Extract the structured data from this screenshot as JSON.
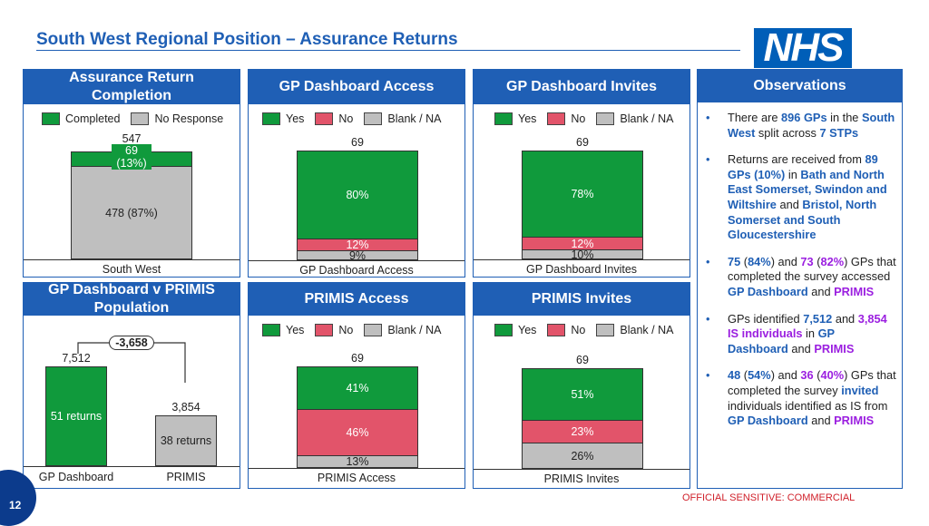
{
  "header": {
    "title": "South West Regional Position – Assurance Returns",
    "logo": "NHS"
  },
  "panels": {
    "completion": {
      "title": "Assurance Return Completion",
      "legend": [
        "Completed",
        "No Response"
      ],
      "total": "547",
      "top_label": "69 (13%)",
      "bottom_label": "478 (87%)",
      "x_label": "South West"
    },
    "gp_access": {
      "title": "GP Dashboard Access",
      "legend": [
        "Yes",
        "No",
        "Blank / NA"
      ],
      "total": "69",
      "green": "80%",
      "red": "12%",
      "grey": "9%",
      "x_label": "GP Dashboard Access"
    },
    "gp_invites": {
      "title": "GP Dashboard Invites",
      "legend": [
        "Yes",
        "No",
        "Blank / NA"
      ],
      "total": "69",
      "green": "78%",
      "red": "12%",
      "grey": "10%",
      "x_label": "GP Dashboard Invites"
    },
    "population": {
      "title": "GP Dashboard v PRIMIS Population",
      "diff": "-3,658",
      "bar1_total": "7,512",
      "bar1_label": "51 returns",
      "bar1_x": "GP Dashboard",
      "bar2_total": "3,854",
      "bar2_label": "38 returns",
      "bar2_x": "PRIMIS"
    },
    "primis_access": {
      "title": "PRIMIS Access",
      "legend": [
        "Yes",
        "No",
        "Blank / NA"
      ],
      "total": "69",
      "green": "41%",
      "red": "46%",
      "grey": "13%",
      "x_label": "PRIMIS Access"
    },
    "primis_invites": {
      "title": "PRIMIS Invites",
      "legend": [
        "Yes",
        "No",
        "Blank / NA"
      ],
      "total": "69",
      "green": "51%",
      "red": "23%",
      "grey": "26%",
      "x_label": "PRIMIS Invites"
    },
    "observations": {
      "title": "Observations"
    }
  },
  "observations": [
    [
      {
        "t": "There are "
      },
      {
        "t": "896 GPs",
        "c": "b"
      },
      {
        "t": " in the "
      },
      {
        "t": "South West",
        "c": "b"
      },
      {
        "t": " split across "
      },
      {
        "t": "7 STPs",
        "c": "b"
      }
    ],
    [
      {
        "t": "Returns are received from "
      },
      {
        "t": "89 GPs (10%)",
        "c": "b"
      },
      {
        "t": " in "
      },
      {
        "t": "Bath and North East Somerset, Swindon and Wiltshire",
        "c": "b"
      },
      {
        "t": " and "
      },
      {
        "t": "Bristol, North Somerset and South Gloucestershire",
        "c": "b"
      }
    ],
    [
      {
        "t": "75",
        "c": "b"
      },
      {
        "t": " ("
      },
      {
        "t": "84%",
        "c": "b"
      },
      {
        "t": ") and "
      },
      {
        "t": "73",
        "c": "p"
      },
      {
        "t": " ("
      },
      {
        "t": "82%",
        "c": "p"
      },
      {
        "t": ") GPs that completed the survey accessed "
      },
      {
        "t": "GP Dashboard",
        "c": "b"
      },
      {
        "t": " and "
      },
      {
        "t": "PRIMIS",
        "c": "p"
      }
    ],
    [
      {
        "t": "GPs identified "
      },
      {
        "t": "7,512",
        "c": "b"
      },
      {
        "t": " and "
      },
      {
        "t": "3,854 IS individuals",
        "c": "p"
      },
      {
        "t": " in "
      },
      {
        "t": "GP Dashboard",
        "c": "b"
      },
      {
        "t": " and "
      },
      {
        "t": "PRIMIS",
        "c": "p"
      }
    ],
    [
      {
        "t": "48",
        "c": "b"
      },
      {
        "t": " ("
      },
      {
        "t": "54%",
        "c": "b"
      },
      {
        "t": ") and "
      },
      {
        "t": "36",
        "c": "p"
      },
      {
        "t": " ("
      },
      {
        "t": "40%",
        "c": "p"
      },
      {
        "t": ") GPs that completed the survey "
      },
      {
        "t": "invited",
        "c": "b"
      },
      {
        "t": " individuals identified as IS from "
      },
      {
        "t": "GP Dashboard",
        "c": "b"
      },
      {
        "t": " and "
      },
      {
        "t": "PRIMIS",
        "c": "p"
      }
    ]
  ],
  "footer": {
    "classification": "OFFICIAL SENSITIVE: COMMERCIAL",
    "page": "12"
  },
  "colors": {
    "nhs_blue": "#1f5fb5",
    "green": "#109a3c",
    "red": "#e2546a",
    "grey": "#bfbfbf",
    "purple": "#9b1fe0"
  }
}
